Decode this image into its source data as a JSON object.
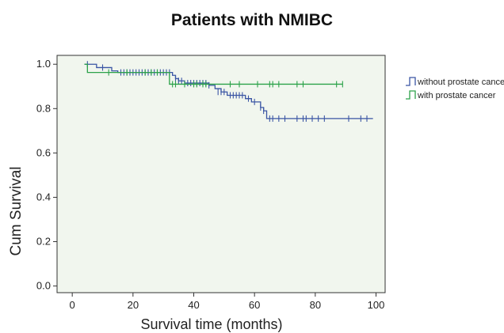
{
  "colors": {
    "plot_bg": "#f1f6ee",
    "axis": "#333333",
    "without": "#3a55a4",
    "with": "#2ca24a"
  },
  "chart_data": {
    "type": "line",
    "subtype": "kaplan-meier step",
    "title": "Patients with NMIBC",
    "xlabel": "Survival time (months)",
    "ylabel": "Cum Survival",
    "xlim": [
      -5,
      103
    ],
    "ylim": [
      -0.03,
      1.04
    ],
    "xticks": [
      0,
      20,
      40,
      60,
      80,
      100
    ],
    "xtick_labels": [
      "0",
      "20",
      "40",
      "60",
      "80",
      "100"
    ],
    "yticks": [
      0.0,
      0.2,
      0.4,
      0.6,
      0.8,
      1.0
    ],
    "ytick_labels": [
      "0.0",
      "0.2",
      "0.4",
      "0.6",
      "0.8",
      "1.0"
    ],
    "grid": false,
    "legend_position": "right",
    "series": [
      {
        "name": "without prostate cancer",
        "color": "#3a55a4",
        "steps": [
          [
            4,
            1.0
          ],
          [
            8,
            0.985
          ],
          [
            13,
            0.97
          ],
          [
            15,
            0.963
          ],
          [
            27,
            0.963
          ],
          [
            33,
            0.95
          ],
          [
            34,
            0.935
          ],
          [
            35,
            0.925
          ],
          [
            37,
            0.915
          ],
          [
            45,
            0.905
          ],
          [
            47,
            0.89
          ],
          [
            49,
            0.875
          ],
          [
            51,
            0.86
          ],
          [
            56,
            0.86
          ],
          [
            57,
            0.845
          ],
          [
            59,
            0.83
          ],
          [
            62,
            0.805
          ],
          [
            63,
            0.79
          ],
          [
            64,
            0.755
          ],
          [
            99,
            0.755
          ]
        ],
        "censored": [
          [
            5,
            1.0
          ],
          [
            10,
            0.985
          ],
          [
            16,
            0.963
          ],
          [
            17,
            0.963
          ],
          [
            18,
            0.963
          ],
          [
            19,
            0.963
          ],
          [
            20,
            0.963
          ],
          [
            21,
            0.963
          ],
          [
            22,
            0.963
          ],
          [
            23,
            0.963
          ],
          [
            24,
            0.963
          ],
          [
            25,
            0.963
          ],
          [
            26,
            0.963
          ],
          [
            27,
            0.963
          ],
          [
            28,
            0.963
          ],
          [
            29,
            0.963
          ],
          [
            30,
            0.963
          ],
          [
            31,
            0.963
          ],
          [
            32,
            0.963
          ],
          [
            34,
            0.935
          ],
          [
            35,
            0.925
          ],
          [
            36,
            0.925
          ],
          [
            38,
            0.915
          ],
          [
            39,
            0.915
          ],
          [
            40,
            0.915
          ],
          [
            41,
            0.915
          ],
          [
            42,
            0.915
          ],
          [
            43,
            0.915
          ],
          [
            44,
            0.915
          ],
          [
            45,
            0.905
          ],
          [
            48,
            0.875
          ],
          [
            49,
            0.875
          ],
          [
            50,
            0.875
          ],
          [
            52,
            0.86
          ],
          [
            53,
            0.86
          ],
          [
            54,
            0.86
          ],
          [
            55,
            0.86
          ],
          [
            56,
            0.86
          ],
          [
            58,
            0.845
          ],
          [
            60,
            0.83
          ],
          [
            62,
            0.805
          ],
          [
            63,
            0.79
          ],
          [
            65,
            0.755
          ],
          [
            66,
            0.755
          ],
          [
            68,
            0.755
          ],
          [
            70,
            0.755
          ],
          [
            74,
            0.755
          ],
          [
            76,
            0.755
          ],
          [
            77,
            0.755
          ],
          [
            79,
            0.755
          ],
          [
            81,
            0.755
          ],
          [
            83,
            0.755
          ],
          [
            91,
            0.755
          ],
          [
            95,
            0.755
          ],
          [
            97,
            0.755
          ]
        ]
      },
      {
        "name": "with prostate cancer",
        "color": "#2ca24a",
        "steps": [
          [
            4,
            1.0
          ],
          [
            5,
            0.963
          ],
          [
            31,
            0.963
          ],
          [
            32,
            0.91
          ],
          [
            89,
            0.91
          ]
        ],
        "censored": [
          [
            12,
            0.963
          ],
          [
            18,
            0.963
          ],
          [
            24,
            0.963
          ],
          [
            26,
            0.963
          ],
          [
            28,
            0.963
          ],
          [
            33,
            0.91
          ],
          [
            34,
            0.91
          ],
          [
            37,
            0.91
          ],
          [
            40,
            0.91
          ],
          [
            41,
            0.91
          ],
          [
            43,
            0.91
          ],
          [
            44,
            0.91
          ],
          [
            52,
            0.91
          ],
          [
            55,
            0.91
          ],
          [
            61,
            0.91
          ],
          [
            65,
            0.91
          ],
          [
            66,
            0.91
          ],
          [
            68,
            0.91
          ],
          [
            74,
            0.91
          ],
          [
            76,
            0.91
          ],
          [
            87,
            0.91
          ],
          [
            89,
            0.91
          ]
        ]
      }
    ]
  }
}
